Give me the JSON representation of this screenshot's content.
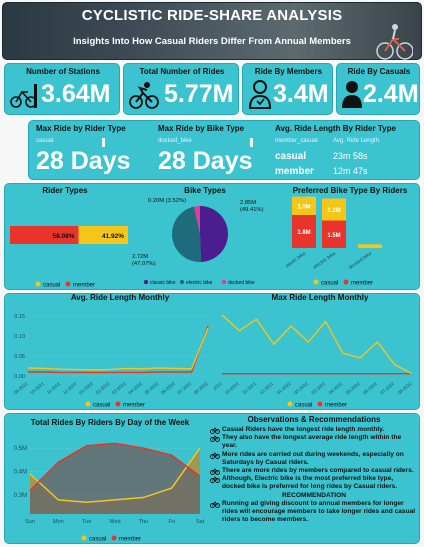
{
  "header": {
    "title": "CYCLISTIC RIDE-SHARE ANALYSIS",
    "subtitle": "Insights Into How Casual Riders Differ From Annual Members"
  },
  "kpis": [
    {
      "label": "Number of Stations",
      "value": "3.64M",
      "icon": "bikes-parked-icon"
    },
    {
      "label": "Total Number of Rides",
      "value": "5.77M",
      "icon": "cyclist-icon"
    },
    {
      "label": "Ride By Members",
      "value": "3.4M",
      "icon": "member-person-icon"
    },
    {
      "label": "Ride By Casuals",
      "value": "2.4M",
      "icon": "casual-person-icon"
    }
  ],
  "max_rider": {
    "title": "Max Ride by Rider Type",
    "sub": "casual",
    "value": "28 Days"
  },
  "max_bike": {
    "title": "Max Ride by Bike Type",
    "sub": "docked_bike",
    "value": "28 Days"
  },
  "avg_len": {
    "title": "Avg. Ride Length By Rider Type",
    "col1": "member_casual",
    "col2": "Avg. Ride Length",
    "rows": [
      {
        "type": "casual",
        "value": "23m 58s"
      },
      {
        "type": "member",
        "value": "12m 47s"
      }
    ]
  },
  "legend": {
    "casual": "casual",
    "member": "member"
  },
  "colors": {
    "casual": "#f5c518",
    "member": "#e8342b",
    "classic": "#4b1d8f",
    "electric": "#1e6b7b",
    "docked": "#e03c9c",
    "panel": "#3bc4cf"
  },
  "chart_data": [
    {
      "type": "bar",
      "title": "Rider Types",
      "orientation": "horizontal-stacked",
      "series": [
        {
          "name": "member",
          "values": [
            58.08
          ],
          "label": "58.08%"
        },
        {
          "name": "casual",
          "values": [
            41.92
          ],
          "label": "41.92%"
        }
      ]
    },
    {
      "type": "pie",
      "title": "Bike Types",
      "slices": [
        {
          "name": "classic bike",
          "value": 2.85,
          "label": "2.85M (49.41%)"
        },
        {
          "name": "electric bike",
          "value": 2.72,
          "label": "2.72M (47.07%)"
        },
        {
          "name": "docked bike",
          "value": 0.2,
          "label": "0.20M (3.52%)"
        }
      ]
    },
    {
      "type": "bar",
      "title": "Preferred Bike Type By Riders",
      "categories": [
        "classic_bike",
        "electric_bike",
        "docked_bike"
      ],
      "series": [
        {
          "name": "member",
          "values": [
            1.8,
            1.5,
            0
          ],
          "labels": [
            "1.8M",
            "1.5M",
            ""
          ]
        },
        {
          "name": "casual",
          "values": [
            1.0,
            1.2,
            0.2
          ],
          "labels": [
            "1.0M",
            "1.2M",
            ""
          ]
        }
      ],
      "ylim": [
        0,
        3
      ]
    },
    {
      "type": "line",
      "title": "Avg. Ride Length Monthly",
      "x": [
        "09-2021",
        "10-2021",
        "11-2021",
        "12-2021",
        "01-2022",
        "02-2022",
        "03-2022",
        "04-2022",
        "05-2022",
        "06-2022",
        "07-2022",
        "08-2022"
      ],
      "series": [
        {
          "name": "casual",
          "values": [
            0.02,
            0.019,
            0.017,
            0.016,
            0.015,
            0.016,
            0.019,
            0.018,
            0.02,
            0.019,
            0.018,
            0.12
          ]
        },
        {
          "name": "member",
          "values": [
            0.01,
            0.01,
            0.009,
            0.009,
            0.009,
            0.009,
            0.009,
            0.009,
            0.01,
            0.01,
            0.01,
            0.125
          ]
        }
      ],
      "yticks": [
        "0.00",
        "0.05",
        "0.10",
        "0.15"
      ],
      "ylim": [
        0,
        0.17
      ]
    },
    {
      "type": "line",
      "title": "Max Ride Length Monthly",
      "x": [
        "09-2021",
        "10-2021",
        "11-2021",
        "12-2021",
        "01-2022",
        "02-2022",
        "03-2022",
        "04-2022",
        "05-2022",
        "06-2022",
        "07-2022",
        "08-2022"
      ],
      "series": [
        {
          "name": "casual",
          "values": [
            27,
            20,
            25,
            14,
            22,
            15,
            24,
            10,
            8,
            15,
            5,
            1
          ]
        },
        {
          "name": "member",
          "values": [
            1,
            1,
            1,
            1,
            1,
            1,
            1,
            1,
            1,
            1,
            1,
            1
          ]
        }
      ],
      "ylim": [
        0,
        30
      ]
    },
    {
      "type": "area",
      "title": "Total Rides By Riders By Day of the Week",
      "categories": [
        "Sun",
        "Mon",
        "Tue",
        "Wed",
        "Thu",
        "Fri",
        "Sat"
      ],
      "series": [
        {
          "name": "casual",
          "values": [
            0.39,
            0.28,
            0.27,
            0.28,
            0.29,
            0.33,
            0.5
          ]
        },
        {
          "name": "member",
          "values": [
            0.32,
            0.44,
            0.51,
            0.52,
            0.5,
            0.47,
            0.38
          ]
        }
      ],
      "yticks": [
        "0.3M",
        "0.4M",
        "0.5M"
      ],
      "ylim": [
        0.22,
        0.56
      ]
    }
  ],
  "observations": {
    "title": "Observations & Recommendations",
    "items": [
      "Casual Riders have the longest ride length monthly.",
      "They also have the longest average ride length within the year.",
      "More rides are carried out during weekends, especially on Saturdays by Casual riders.",
      "There are more rides by members compared to casual riders.",
      "Although, Electric bike is the most preferred bike type, docked bike is preferred for long rides by Casual riders."
    ],
    "rec_title": "RECOMMENDATION",
    "rec_text": "Running ad giving discount to annual members for longer rides will encourage members to take longer rides and casual riders to become members."
  }
}
